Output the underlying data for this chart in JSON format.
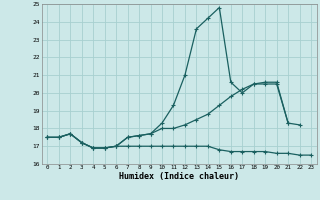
{
  "xlabel": "Humidex (Indice chaleur)",
  "bg_color": "#cce8e8",
  "grid_color": "#a8d0d0",
  "line_color": "#1a6060",
  "x": [
    0,
    1,
    2,
    3,
    4,
    5,
    6,
    7,
    8,
    9,
    10,
    11,
    12,
    13,
    14,
    15,
    16,
    17,
    18,
    19,
    20,
    21,
    22,
    23
  ],
  "line1": [
    17.5,
    17.5,
    17.7,
    17.2,
    16.9,
    16.9,
    17.0,
    17.5,
    17.6,
    17.7,
    18.3,
    19.3,
    21.0,
    23.6,
    24.2,
    24.8,
    20.6,
    20.0,
    20.5,
    20.6,
    20.6,
    18.3,
    null,
    null
  ],
  "line2": [
    17.5,
    17.5,
    17.7,
    17.2,
    16.9,
    16.9,
    17.0,
    17.5,
    17.6,
    17.7,
    18.0,
    18.0,
    18.2,
    18.5,
    18.8,
    19.3,
    19.8,
    20.2,
    20.5,
    20.5,
    20.5,
    18.3,
    18.2,
    null
  ],
  "line3": [
    17.5,
    17.5,
    17.7,
    17.2,
    16.9,
    16.9,
    17.0,
    17.0,
    17.0,
    17.0,
    17.0,
    17.0,
    17.0,
    17.0,
    17.0,
    16.8,
    16.7,
    16.7,
    16.7,
    16.7,
    16.6,
    16.6,
    16.5,
    16.5
  ],
  "ylim": [
    16,
    25
  ],
  "yticks": [
    16,
    17,
    18,
    19,
    20,
    21,
    22,
    23,
    24,
    25
  ],
  "xticks": [
    0,
    1,
    2,
    3,
    4,
    5,
    6,
    7,
    8,
    9,
    10,
    11,
    12,
    13,
    14,
    15,
    16,
    17,
    18,
    19,
    20,
    21,
    22,
    23
  ],
  "xlim": [
    -0.5,
    23.5
  ]
}
